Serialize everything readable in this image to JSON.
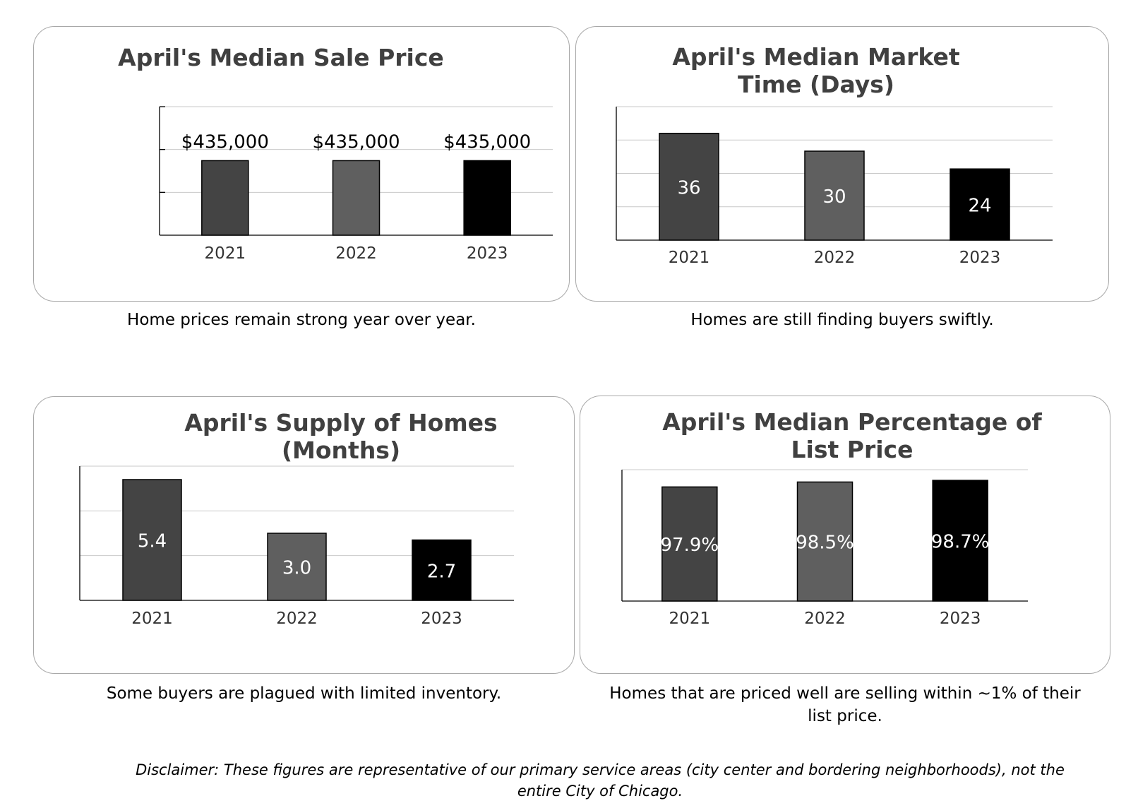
{
  "chart_data": [
    {
      "type": "bar",
      "title": "April's Median Sale Price",
      "categories": [
        "2021",
        "2022",
        "2023"
      ],
      "values": [
        435000,
        435000,
        435000
      ],
      "data_labels": [
        "$435,000",
        "$435,000",
        "$435,000"
      ],
      "bar_colors": [
        "#444444",
        "#5f5f5f",
        "#000000"
      ],
      "ylim": [
        0,
        750000
      ],
      "grid": true,
      "caption": "Home prices remain strong year over year."
    },
    {
      "type": "bar",
      "title": "April's Median Market Time (Days)",
      "categories": [
        "2021",
        "2022",
        "2023"
      ],
      "values": [
        36,
        30,
        24
      ],
      "data_labels": [
        "36",
        "30",
        "24"
      ],
      "bar_colors": [
        "#444444",
        "#5f5f5f",
        "#000000"
      ],
      "ylim": [
        0,
        45
      ],
      "grid": true,
      "caption": "Homes are still finding buyers swiftly."
    },
    {
      "type": "bar",
      "title": "April's Supply of Homes (Months)",
      "categories": [
        "2021",
        "2022",
        "2023"
      ],
      "values": [
        5.4,
        3.0,
        2.7
      ],
      "data_labels": [
        "5.4",
        "3.0",
        "2.7"
      ],
      "bar_colors": [
        "#444444",
        "#5f5f5f",
        "#000000"
      ],
      "ylim": [
        0,
        6
      ],
      "grid": true,
      "caption": "Some buyers are plagued with limited inventory."
    },
    {
      "type": "bar",
      "title": "April's Median Percentage of List Price",
      "categories": [
        "2021",
        "2022",
        "2023"
      ],
      "values": [
        97.9,
        98.5,
        98.7
      ],
      "data_labels": [
        "97.9%",
        "98.5%",
        "98.7%"
      ],
      "bar_colors": [
        "#444444",
        "#5f5f5f",
        "#000000"
      ],
      "ylim": [
        84,
        100
      ],
      "grid": true,
      "caption": "Homes that are priced well are selling within ~1% of their list price."
    }
  ],
  "disclaimer": "Disclaimer: These figures are representative of our primary service areas (city center and bordering neighborhoods), not the entire City of Chicago."
}
